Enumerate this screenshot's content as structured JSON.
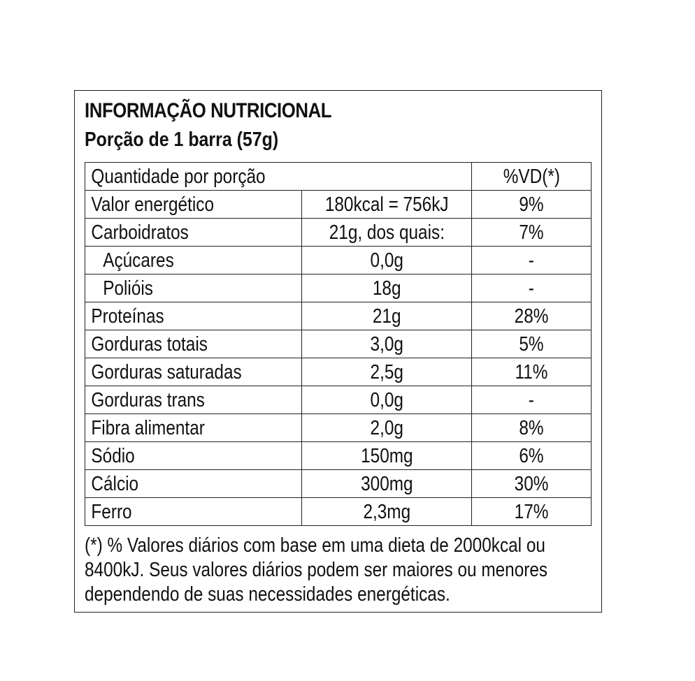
{
  "title": "INFORMAÇÃO NUTRICIONAL",
  "serving": "Porção de 1 barra (57g)",
  "table": {
    "header_label": "Quantidade por porção",
    "header_vd": "%VD(*)",
    "rows": [
      {
        "label": "Valor energético",
        "amount": "180kcal = 756kJ",
        "vd": "9%"
      },
      {
        "label": "Carboidratos",
        "amount": "21g, dos quais:",
        "vd": "7%"
      },
      {
        "label": "Açúcares",
        "amount": "0,0g",
        "vd": "-"
      },
      {
        "label": "Polióis",
        "amount": "18g",
        "vd": "-"
      },
      {
        "label": "Proteínas",
        "amount": "21g",
        "vd": "28%"
      },
      {
        "label": "Gorduras totais",
        "amount": "3,0g",
        "vd": "5%"
      },
      {
        "label": "Gorduras saturadas",
        "amount": "2,5g",
        "vd": "11%"
      },
      {
        "label": "Gorduras trans",
        "amount": "0,0g",
        "vd": "-"
      },
      {
        "label": "Fibra alimentar",
        "amount": "2,0g",
        "vd": "8%"
      },
      {
        "label": "Sódio",
        "amount": "150mg",
        "vd": "6%"
      },
      {
        "label": "Cálcio",
        "amount": "300mg",
        "vd": "30%"
      },
      {
        "label": "Ferro",
        "amount": "2,3mg",
        "vd": "17%"
      }
    ]
  },
  "footnote": {
    "line1": "(*) % Valores diários com base em uma dieta de 2000kcal ou",
    "line2": "8400kJ. Seus valores diários podem ser maiores ou menores",
    "line3": "dependendo de suas necessidades energéticas."
  }
}
